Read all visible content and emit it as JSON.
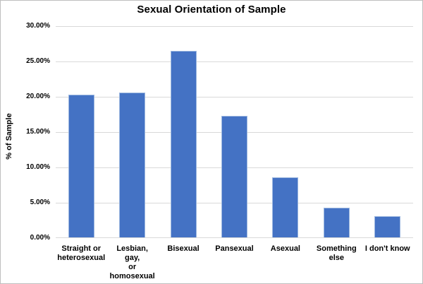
{
  "chart_data": {
    "type": "bar",
    "title": "Sexual Orientation of Sample",
    "xlabel": "",
    "ylabel": "% of Sample",
    "categories": [
      "Straight or heterosexual",
      "Lesbian, gay, or homosexual",
      "Bisexual",
      "Pansexual",
      "Asexual",
      "Something else",
      "I don't know"
    ],
    "category_label_lines": [
      [
        "Straight or",
        "heterosexual"
      ],
      [
        "Lesbian, gay,",
        "or",
        "homosexual"
      ],
      [
        "Bisexual"
      ],
      [
        "Pansexual"
      ],
      [
        "Asexual"
      ],
      [
        "Something",
        "else"
      ],
      [
        "I don't know"
      ]
    ],
    "values": [
      20.2,
      20.5,
      26.4,
      17.2,
      8.5,
      4.2,
      3.0
    ],
    "ylim": [
      0,
      30
    ],
    "ytick_step": 5,
    "ytick_labels": [
      "0.00%",
      "5.00%",
      "10.00%",
      "15.00%",
      "20.00%",
      "25.00%",
      "30.00%"
    ],
    "grid": true,
    "legend": "none",
    "bar_color": "#4472C4",
    "bar_border_color": "#9DB8E0",
    "gridline_color": "#D9D9D9"
  }
}
